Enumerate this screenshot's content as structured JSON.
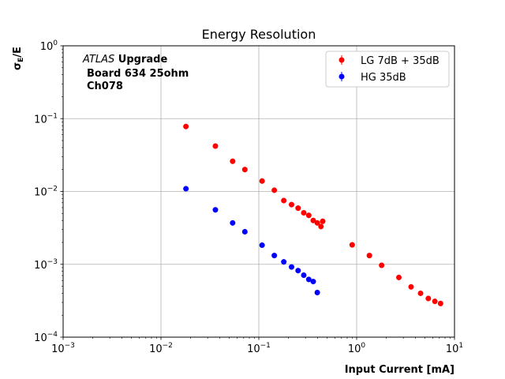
{
  "chart_data": {
    "type": "scatter",
    "title": "Energy Resolution",
    "xlabel": "Input Current [mA]",
    "ylabel_main": "σ",
    "ylabel_sub": "E",
    "ylabel_tail": "/E",
    "xscale": "log",
    "yscale": "log",
    "xlim": [
      0.001,
      10
    ],
    "ylim": [
      0.0001,
      1
    ],
    "grid": true,
    "legend_position": "top-right",
    "x_ticks": [
      {
        "base": "10",
        "exp": "−3"
      },
      {
        "base": "10",
        "exp": "−2"
      },
      {
        "base": "10",
        "exp": "−1"
      },
      {
        "base": "10",
        "exp": "0"
      },
      {
        "base": "10",
        "exp": "1"
      }
    ],
    "y_ticks": [
      {
        "base": "10",
        "exp": "−4"
      },
      {
        "base": "10",
        "exp": "−3"
      },
      {
        "base": "10",
        "exp": "−2"
      },
      {
        "base": "10",
        "exp": "−1"
      },
      {
        "base": "10",
        "exp": "0"
      }
    ],
    "annotation": {
      "italic": "ATLAS",
      "bold": " Upgrade",
      "line2": "Board 634 25ohm",
      "line3": "Ch078"
    },
    "series": [
      {
        "name": "LG 7dB + 35dB",
        "color": "#ff0000",
        "points": [
          {
            "x": 0.018,
            "y": 0.078
          },
          {
            "x": 0.036,
            "y": 0.042
          },
          {
            "x": 0.054,
            "y": 0.026
          },
          {
            "x": 0.072,
            "y": 0.02
          },
          {
            "x": 0.108,
            "y": 0.0139
          },
          {
            "x": 0.144,
            "y": 0.0104
          },
          {
            "x": 0.18,
            "y": 0.0075
          },
          {
            "x": 0.216,
            "y": 0.0066
          },
          {
            "x": 0.252,
            "y": 0.0059
          },
          {
            "x": 0.288,
            "y": 0.0051
          },
          {
            "x": 0.324,
            "y": 0.0047
          },
          {
            "x": 0.36,
            "y": 0.004
          },
          {
            "x": 0.396,
            "y": 0.0037
          },
          {
            "x": 0.432,
            "y": 0.0033
          },
          {
            "x": 0.45,
            "y": 0.0039
          },
          {
            "x": 0.9,
            "y": 0.00185
          },
          {
            "x": 1.35,
            "y": 0.00132
          },
          {
            "x": 1.8,
            "y": 0.00097
          },
          {
            "x": 2.7,
            "y": 0.00066
          },
          {
            "x": 3.6,
            "y": 0.00049
          },
          {
            "x": 4.5,
            "y": 0.0004
          },
          {
            "x": 5.4,
            "y": 0.00034
          },
          {
            "x": 6.3,
            "y": 0.00031
          },
          {
            "x": 7.2,
            "y": 0.00029
          }
        ]
      },
      {
        "name": "HG 35dB",
        "color": "#0000ff",
        "points": [
          {
            "x": 0.018,
            "y": 0.0109
          },
          {
            "x": 0.036,
            "y": 0.0056
          },
          {
            "x": 0.054,
            "y": 0.0037
          },
          {
            "x": 0.072,
            "y": 0.0028
          },
          {
            "x": 0.108,
            "y": 0.00183
          },
          {
            "x": 0.144,
            "y": 0.00132
          },
          {
            "x": 0.18,
            "y": 0.00108
          },
          {
            "x": 0.216,
            "y": 0.00092
          },
          {
            "x": 0.252,
            "y": 0.00082
          },
          {
            "x": 0.288,
            "y": 0.00071
          },
          {
            "x": 0.324,
            "y": 0.00062
          },
          {
            "x": 0.36,
            "y": 0.00058
          },
          {
            "x": 0.396,
            "y": 0.00041
          }
        ]
      }
    ]
  }
}
